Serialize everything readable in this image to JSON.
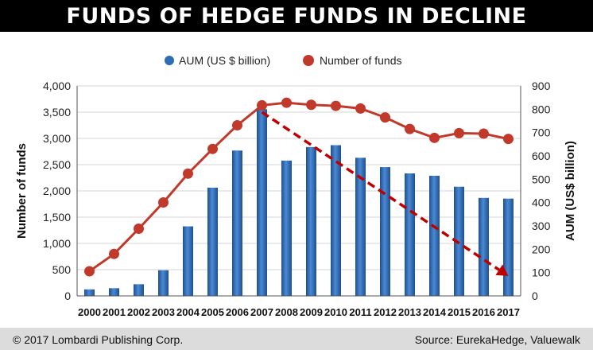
{
  "title": "FUNDS OF HEDGE FUNDS IN DECLINE",
  "footer": {
    "copyright": "© 2017 Lombardi Publishing Corp.",
    "source": "Source: EurekaHedge, Valuewalk"
  },
  "colors": {
    "bar": "#2e6db5",
    "line": "#c0392b",
    "trend": "#c00000"
  },
  "chart_data": {
    "type": "bar",
    "categories": [
      "2000",
      "2001",
      "2002",
      "2003",
      "2004",
      "2005",
      "2006",
      "2007",
      "2008",
      "2009",
      "2010",
      "2011",
      "2012",
      "2013",
      "2014",
      "2015",
      "2016",
      "2017"
    ],
    "series": [
      {
        "name": "AUM (US $ billion)",
        "type": "bar",
        "axis": "right",
        "values": [
          28,
          33,
          50,
          110,
          298,
          464,
          623,
          800,
          580,
          638,
          646,
          592,
          552,
          525,
          515,
          468,
          420,
          417
        ]
      },
      {
        "name": "Number of funds",
        "type": "line",
        "axis": "left",
        "values": [
          470,
          800,
          1280,
          1780,
          2330,
          2800,
          3250,
          3630,
          3680,
          3640,
          3620,
          3570,
          3400,
          3180,
          3010,
          3100,
          3090,
          2990
        ]
      }
    ],
    "trend_arrow": {
      "from": [
        "2007",
        3500
      ],
      "to": [
        "2017",
        380
      ]
    },
    "ylabel": "Number of funds",
    "ylim": [
      0,
      4000
    ],
    "yticks": [
      "0",
      "500",
      "1,000",
      "1,500",
      "2,000",
      "2,500",
      "3,000",
      "3,500",
      "4,000"
    ],
    "y2label": "AUM (US$ billion)",
    "y2lim": [
      0,
      900
    ],
    "y2ticks": [
      "0",
      "100",
      "200",
      "300",
      "400",
      "500",
      "600",
      "700",
      "800",
      "900"
    ],
    "legend_position": "top",
    "grid": true
  }
}
